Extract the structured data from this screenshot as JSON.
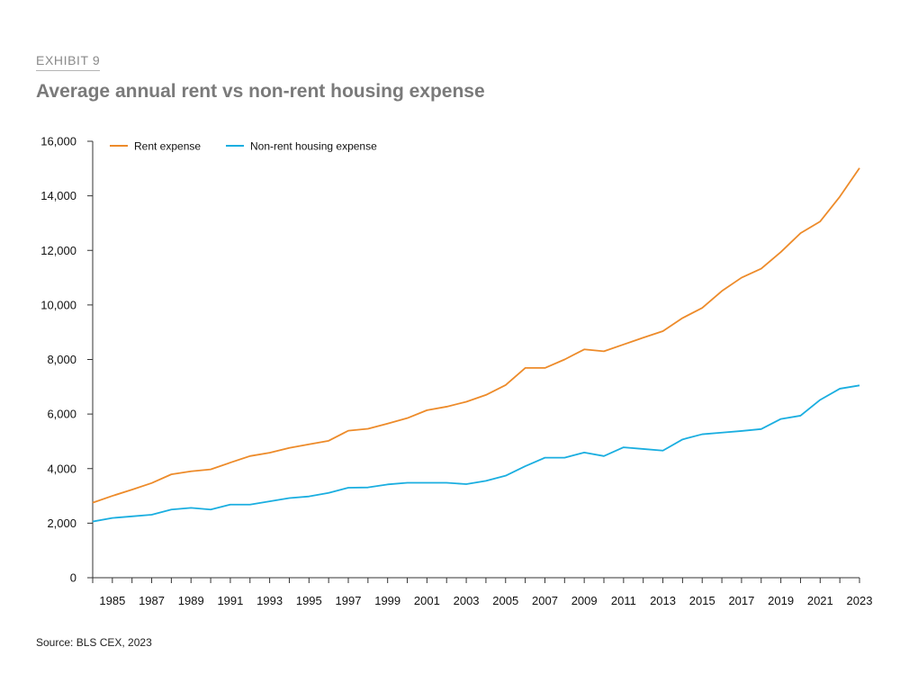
{
  "header": {
    "exhibit": "EXHIBIT 9"
  },
  "footer": {
    "source": "Source: BLS CEX, 2023"
  },
  "colors": {
    "rent": "#ed8b2a",
    "nonrent": "#1aaee0",
    "axis": "#333333"
  },
  "chart_data": {
    "type": "line",
    "title": "Average annual rent vs non-rent housing expense",
    "xlabel": "",
    "ylabel": "",
    "ylim": [
      0,
      16000
    ],
    "yticks": [
      0,
      2000,
      4000,
      6000,
      8000,
      10000,
      12000,
      14000,
      16000
    ],
    "ytick_labels": [
      "0",
      "2,000",
      "4,000",
      "6,000",
      "8,000",
      "10,000",
      "12,000",
      "14,000",
      "16,000"
    ],
    "xticks": [
      1985,
      1987,
      1989,
      1991,
      1993,
      1995,
      1997,
      1999,
      2001,
      2003,
      2005,
      2007,
      2009,
      2011,
      2013,
      2015,
      2017,
      2019,
      2021,
      2023
    ],
    "xtick_labels": [
      "1985",
      "1987",
      "1989",
      "1991",
      "1993",
      "1995",
      "1997",
      "1999",
      "2001",
      "2003",
      "2005",
      "2007",
      "2009",
      "2011",
      "2013",
      "2015",
      "2017",
      "2019",
      "2021",
      "2023"
    ],
    "legend_position": "top-left",
    "x": [
      1984,
      1985,
      1986,
      1987,
      1988,
      1989,
      1990,
      1991,
      1992,
      1993,
      1994,
      1995,
      1996,
      1997,
      1998,
      1999,
      2000,
      2001,
      2002,
      2003,
      2004,
      2005,
      2006,
      2007,
      2008,
      2009,
      2010,
      2011,
      2012,
      2013,
      2014,
      2015,
      2016,
      2017,
      2018,
      2019,
      2020,
      2021,
      2022,
      2023
    ],
    "series": [
      {
        "name": "Rent expense",
        "values": [
          2750,
          3000,
          3230,
          3470,
          3790,
          3900,
          3970,
          4220,
          4460,
          4580,
          4760,
          4890,
          5020,
          5390,
          5460,
          5650,
          5850,
          6140,
          6270,
          6450,
          6700,
          7060,
          7690,
          7690,
          8000,
          8370,
          8300,
          8550,
          8800,
          9040,
          9520,
          9890,
          10510,
          11000,
          11330,
          11940,
          12630,
          13060,
          13970,
          15020
        ]
      },
      {
        "name": "Non-rent housing expense",
        "values": [
          2060,
          2190,
          2250,
          2310,
          2500,
          2560,
          2500,
          2680,
          2680,
          2800,
          2920,
          2980,
          3110,
          3300,
          3310,
          3420,
          3480,
          3480,
          3480,
          3430,
          3550,
          3740,
          4090,
          4400,
          4400,
          4590,
          4460,
          4780,
          4720,
          4660,
          5070,
          5260,
          5320,
          5380,
          5450,
          5820,
          5940,
          6520,
          6930,
          7050
        ]
      }
    ]
  }
}
